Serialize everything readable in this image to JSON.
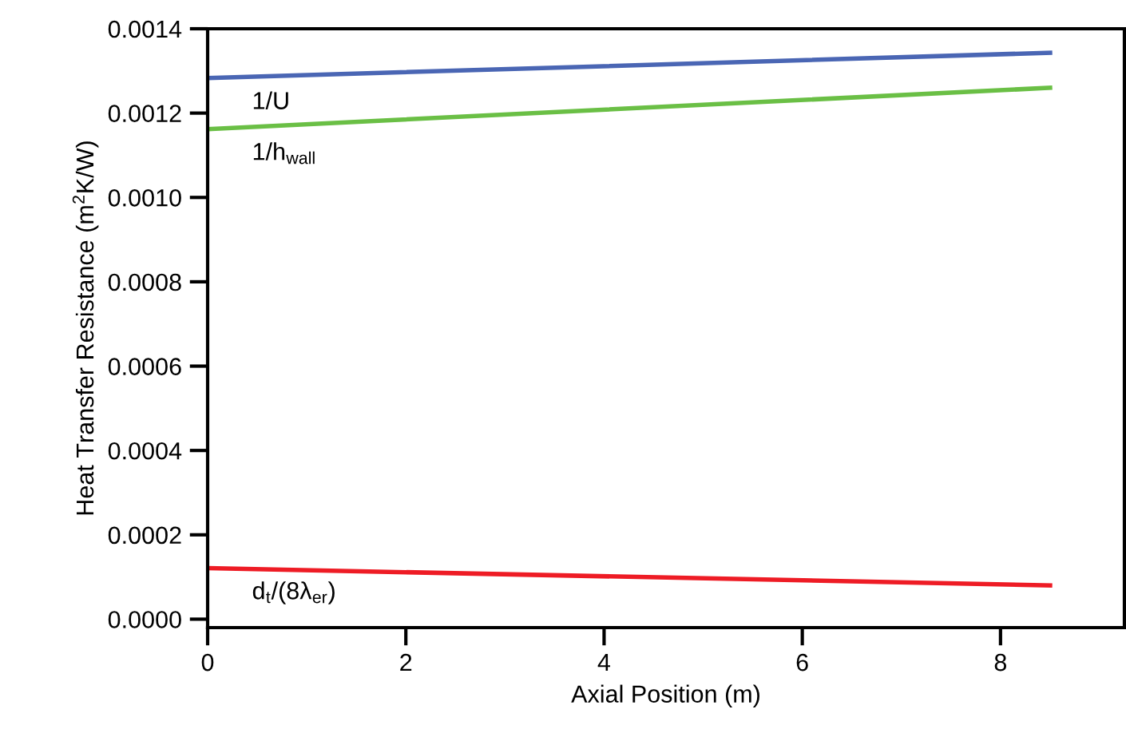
{
  "chart_data": {
    "type": "line",
    "xlabel": "Axial Position (m)",
    "ylabel": "Heat Transfer Resistance (m$^{2}$K/W)",
    "x": [
      0,
      8.5
    ],
    "series": [
      {
        "name": "1/U",
        "color": "#4a66b4",
        "values": [
          0.001283,
          0.001343
        ]
      },
      {
        "name": "1/h$_{wall}$",
        "color": "#6abf45",
        "values": [
          0.001162,
          0.00126
        ]
      },
      {
        "name": "d$_{t}$/(8λ$_{er}$)",
        "color": "#ee1c25",
        "values": [
          0.000121,
          8e-05
        ]
      }
    ],
    "xlim": [
      0,
      9.25
    ],
    "ylim": [
      -2e-05,
      0.0014
    ],
    "xticks": [
      0,
      2,
      4,
      6,
      8
    ],
    "yticks": [
      {
        "value": 0,
        "label": "0.0000"
      },
      {
        "value": 0.0002,
        "label": "0.0002"
      },
      {
        "value": 0.0004,
        "label": "0.0004"
      },
      {
        "value": 0.0006,
        "label": "0.0006"
      },
      {
        "value": 0.0008,
        "label": "0.0008"
      },
      {
        "value": 0.001,
        "label": "0.0010"
      },
      {
        "value": 0.0012,
        "label": "0.0012"
      },
      {
        "value": 0.0014,
        "label": "0.0014"
      }
    ],
    "grid": false,
    "legend": false,
    "line_style": "solid"
  }
}
